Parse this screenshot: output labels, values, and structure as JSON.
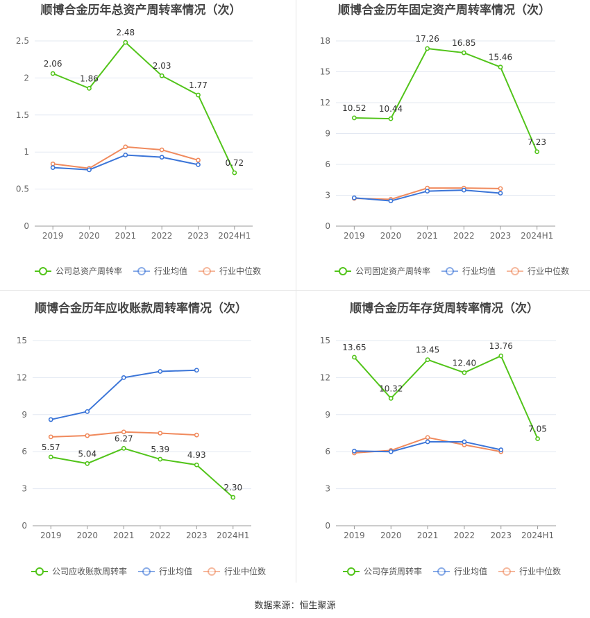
{
  "footer": {
    "source_label": "数据来源：恒生聚源"
  },
  "colors": {
    "company": "#52c41a",
    "industry_avg": "#3b75d8",
    "industry_median": "#f08a5d"
  },
  "legend": {
    "industry_avg": "行业均值",
    "industry_median": "行业中位数"
  },
  "chart_data": [
    {
      "type": "line",
      "title": "顺博合金历年总资产周转率情况（次）",
      "categories": [
        "2019",
        "2020",
        "2021",
        "2022",
        "2023",
        "2024H1"
      ],
      "ylim": [
        0,
        2.5
      ],
      "yticks": [
        "0",
        "0.5",
        "1",
        "1.5",
        "2",
        "2.5"
      ],
      "grid": true,
      "legend_position": "bottom",
      "series": [
        {
          "name": "公司总资产周转率",
          "role": "company",
          "values": [
            2.06,
            1.86,
            2.48,
            2.03,
            1.77,
            0.72
          ],
          "labels": [
            "2.06",
            "1.86",
            "2.48",
            "2.03",
            "1.77",
            "0.72"
          ]
        },
        {
          "name": "行业均值",
          "role": "industry_avg",
          "values": [
            0.79,
            0.76,
            0.96,
            0.93,
            0.83,
            null
          ]
        },
        {
          "name": "行业中位数",
          "role": "industry_median",
          "values": [
            0.84,
            0.78,
            1.07,
            1.03,
            0.89,
            null
          ]
        }
      ]
    },
    {
      "type": "line",
      "title": "顺博合金历年固定资产周转率情况（次）",
      "categories": [
        "2019",
        "2020",
        "2021",
        "2022",
        "2023",
        "2024H1"
      ],
      "ylim": [
        0,
        18
      ],
      "yticks": [
        "0",
        "3",
        "6",
        "9",
        "12",
        "15",
        "18"
      ],
      "grid": true,
      "legend_position": "bottom",
      "series": [
        {
          "name": "公司固定资产周转率",
          "role": "company",
          "values": [
            10.52,
            10.44,
            17.26,
            16.85,
            15.46,
            7.23
          ],
          "labels": [
            "10.52",
            "10.44",
            "17.26",
            "16.85",
            "15.46",
            "7.23"
          ]
        },
        {
          "name": "行业均值",
          "role": "industry_avg",
          "values": [
            2.75,
            2.45,
            3.4,
            3.5,
            3.2,
            null
          ]
        },
        {
          "name": "行业中位数",
          "role": "industry_median",
          "values": [
            2.7,
            2.6,
            3.7,
            3.7,
            3.65,
            null
          ]
        }
      ]
    },
    {
      "type": "line",
      "title": "顺博合金历年应收账款周转率情况（次）",
      "categories": [
        "2019",
        "2020",
        "2021",
        "2022",
        "2023",
        "2024H1"
      ],
      "ylim": [
        0,
        15
      ],
      "yticks": [
        "0",
        "3",
        "6",
        "9",
        "12",
        "15"
      ],
      "grid": true,
      "legend_position": "bottom",
      "series": [
        {
          "name": "公司应收账款周转率",
          "role": "company",
          "values": [
            5.57,
            5.04,
            6.27,
            5.39,
            4.93,
            2.3
          ],
          "labels": [
            "5.57",
            "5.04",
            "6.27",
            "5.39",
            "4.93",
            "2.30"
          ]
        },
        {
          "name": "行业均值",
          "role": "industry_avg",
          "values": [
            8.6,
            9.25,
            12.0,
            12.5,
            12.6,
            null
          ]
        },
        {
          "name": "行业中位数",
          "role": "industry_median",
          "values": [
            7.2,
            7.3,
            7.6,
            7.5,
            7.35,
            null
          ]
        }
      ]
    },
    {
      "type": "line",
      "title": "顺博合金历年存货周转率情况（次）",
      "categories": [
        "2019",
        "2020",
        "2021",
        "2022",
        "2023",
        "2024H1"
      ],
      "ylim": [
        0,
        15
      ],
      "yticks": [
        "0",
        "3",
        "6",
        "9",
        "12",
        "15"
      ],
      "grid": true,
      "legend_position": "bottom",
      "series": [
        {
          "name": "公司存货周转率",
          "role": "company",
          "values": [
            13.65,
            10.32,
            13.45,
            12.4,
            13.76,
            7.05
          ],
          "labels": [
            "13.65",
            "10.32",
            "13.45",
            "12.40",
            "13.76",
            "7.05"
          ]
        },
        {
          "name": "行业均值",
          "role": "industry_avg",
          "values": [
            6.05,
            6.0,
            6.8,
            6.8,
            6.15,
            null
          ]
        },
        {
          "name": "行业中位数",
          "role": "industry_median",
          "values": [
            5.9,
            6.1,
            7.15,
            6.55,
            6.0,
            null
          ]
        }
      ]
    }
  ]
}
